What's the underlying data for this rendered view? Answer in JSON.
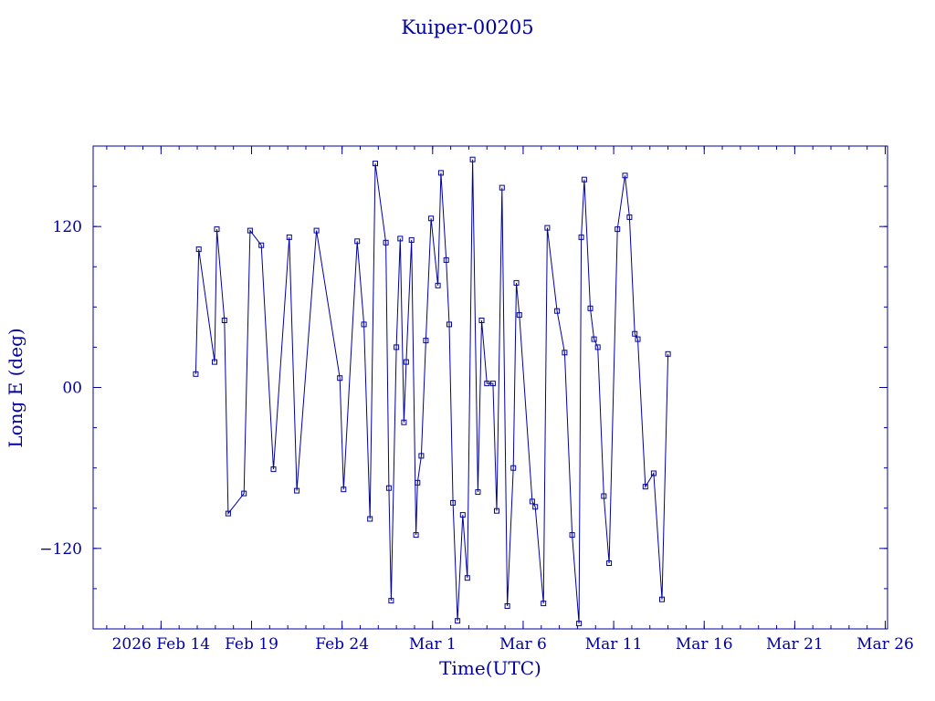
{
  "chart_data": {
    "type": "line",
    "title": "Kuiper-00205",
    "xlabel": "Time(UTC)",
    "ylabel": "Long E (deg)",
    "x_range": [
      "2026-02-10T06:00",
      "2026-03-26T03:00"
    ],
    "ylim": [
      -180,
      180
    ],
    "x_ticks": [
      {
        "date": "2026-02-14",
        "label": "2026 Feb 14"
      },
      {
        "date": "2026-02-19",
        "label": "Feb 19"
      },
      {
        "date": "2026-02-24",
        "label": "Feb 24"
      },
      {
        "date": "2026-03-01",
        "label": "Mar  1"
      },
      {
        "date": "2026-03-06",
        "label": "Mar  6"
      },
      {
        "date": "2026-03-11",
        "label": "Mar 11"
      },
      {
        "date": "2026-03-16",
        "label": "Mar 16"
      },
      {
        "date": "2026-03-21",
        "label": "Mar 21"
      },
      {
        "date": "2026-03-26",
        "label": "Mar 26"
      }
    ],
    "y_ticks": [
      {
        "value": 120,
        "label": "120"
      },
      {
        "value": 0,
        "label": "00"
      },
      {
        "value": -120,
        "label": "−120"
      }
    ],
    "grid": false,
    "series": [
      {
        "color": "#0000a0",
        "marker": "square",
        "points": [
          [
            "2026-02-15T22:00",
            10
          ],
          [
            "2026-02-16T02:00",
            103
          ],
          [
            "2026-02-16T23:00",
            19
          ],
          [
            "2026-02-17T02:00",
            118
          ],
          [
            "2026-02-17T12:00",
            50
          ],
          [
            "2026-02-17T17:00",
            -94
          ],
          [
            "2026-02-18T14:00",
            -79
          ],
          [
            "2026-02-18T22:00",
            117
          ],
          [
            "2026-02-19T13:00",
            106
          ],
          [
            "2026-02-20T05:00",
            -61
          ],
          [
            "2026-02-21T02:00",
            112
          ],
          [
            "2026-02-21T12:00",
            -77
          ],
          [
            "2026-02-22T14:00",
            117
          ],
          [
            "2026-02-23T21:00",
            7
          ],
          [
            "2026-02-24T02:00",
            -76
          ],
          [
            "2026-02-24T20:00",
            109
          ],
          [
            "2026-02-25T05:00",
            47
          ],
          [
            "2026-02-25T13:00",
            -98
          ],
          [
            "2026-02-25T20:00",
            167
          ],
          [
            "2026-02-26T10:00",
            108
          ],
          [
            "2026-02-26T14:00",
            -75
          ],
          [
            "2026-02-26T17:00",
            -159
          ],
          [
            "2026-02-27T00:00",
            30
          ],
          [
            "2026-02-27T05:00",
            111
          ],
          [
            "2026-02-27T10:00",
            -26
          ],
          [
            "2026-02-27T13:00",
            19
          ],
          [
            "2026-02-27T20:00",
            110
          ],
          [
            "2026-02-28T02:00",
            -110
          ],
          [
            "2026-02-28T04:00",
            -71
          ],
          [
            "2026-02-28T09:00",
            -51
          ],
          [
            "2026-02-28T15:00",
            35
          ],
          [
            "2026-02-28T22:00",
            126
          ],
          [
            "2026-03-01T07:00",
            76
          ],
          [
            "2026-03-01T11:00",
            160
          ],
          [
            "2026-03-01T18:00",
            95
          ],
          [
            "2026-03-01T22:00",
            47
          ],
          [
            "2026-03-02T03:00",
            -86
          ],
          [
            "2026-03-02T09:00",
            -174
          ],
          [
            "2026-03-02T16:00",
            -95
          ],
          [
            "2026-03-02T22:00",
            -142
          ],
          [
            "2026-03-03T05:00",
            170
          ],
          [
            "2026-03-03T12:00",
            -78
          ],
          [
            "2026-03-03T17:00",
            50
          ],
          [
            "2026-03-04T00:00",
            3
          ],
          [
            "2026-03-04T08:00",
            3
          ],
          [
            "2026-03-04T13:00",
            -92
          ],
          [
            "2026-03-04T20:00",
            149
          ],
          [
            "2026-03-05T03:00",
            -163
          ],
          [
            "2026-03-05T11:00",
            -60
          ],
          [
            "2026-03-05T15:00",
            78
          ],
          [
            "2026-03-05T19:00",
            54
          ],
          [
            "2026-03-06T12:00",
            -85
          ],
          [
            "2026-03-06T16:00",
            -89
          ],
          [
            "2026-03-07T03:00",
            -161
          ],
          [
            "2026-03-07T08:00",
            119
          ],
          [
            "2026-03-07T21:00",
            57
          ],
          [
            "2026-03-08T07:00",
            26
          ],
          [
            "2026-03-08T17:00",
            -110
          ],
          [
            "2026-03-09T02:00",
            -176
          ],
          [
            "2026-03-09T05:00",
            112
          ],
          [
            "2026-03-09T09:00",
            155
          ],
          [
            "2026-03-09T17:00",
            59
          ],
          [
            "2026-03-09T22:00",
            36
          ],
          [
            "2026-03-10T03:00",
            30
          ],
          [
            "2026-03-10T11:00",
            -81
          ],
          [
            "2026-03-10T18:00",
            -131
          ],
          [
            "2026-03-11T05:00",
            118
          ],
          [
            "2026-03-11T15:00",
            158
          ],
          [
            "2026-03-11T21:00",
            127
          ],
          [
            "2026-03-12T04:00",
            40
          ],
          [
            "2026-03-12T08:00",
            36
          ],
          [
            "2026-03-12T18:00",
            -74
          ],
          [
            "2026-03-13T05:00",
            -64
          ],
          [
            "2026-03-13T16:00",
            -158
          ],
          [
            "2026-03-14T00:00",
            25
          ]
        ]
      }
    ]
  }
}
